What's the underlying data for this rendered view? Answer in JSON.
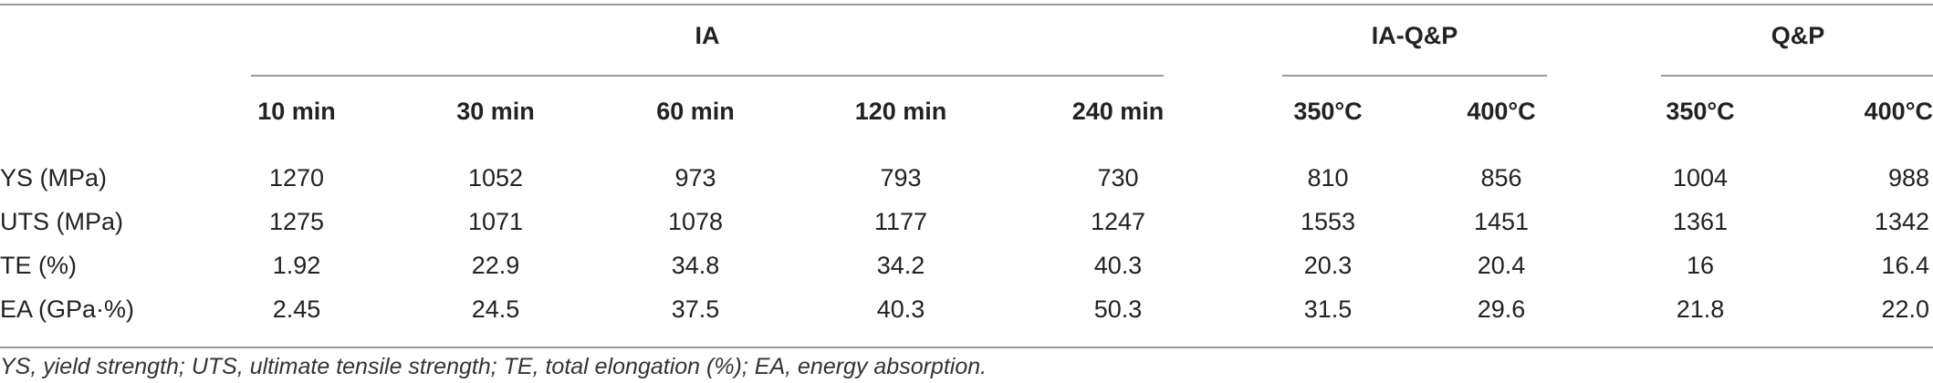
{
  "table": {
    "groups": [
      {
        "label": "IA"
      },
      {
        "label": "IA-Q&P"
      },
      {
        "label": "Q&P"
      }
    ],
    "subheaders": [
      "10 min",
      "30 min",
      "60 min",
      "120 min",
      "240 min",
      "350°C",
      "400°C",
      "350°C",
      "400°C"
    ],
    "rows": [
      {
        "label": "YS (MPa)",
        "values": [
          "1270",
          "1052",
          "973",
          "793",
          "730",
          "810",
          "856",
          "1004",
          "988"
        ]
      },
      {
        "label": "UTS (MPa)",
        "values": [
          "1275",
          "1071",
          "1078",
          "1177",
          "1247",
          "1553",
          "1451",
          "1361",
          "1342"
        ]
      },
      {
        "label": "TE (%)",
        "values": [
          "1.92",
          "22.9",
          "34.8",
          "34.2",
          "40.3",
          "20.3",
          "20.4",
          "16",
          "16.4"
        ]
      },
      {
        "label": "EA (GPa·%)",
        "values": [
          "2.45",
          "24.5",
          "37.5",
          "40.3",
          "50.3",
          "31.5",
          "29.6",
          "21.8",
          "22.0"
        ]
      }
    ]
  },
  "footnote": "YS, yield strength; UTS, ultimate tensile strength; TE, total elongation (%); EA, energy absorption."
}
